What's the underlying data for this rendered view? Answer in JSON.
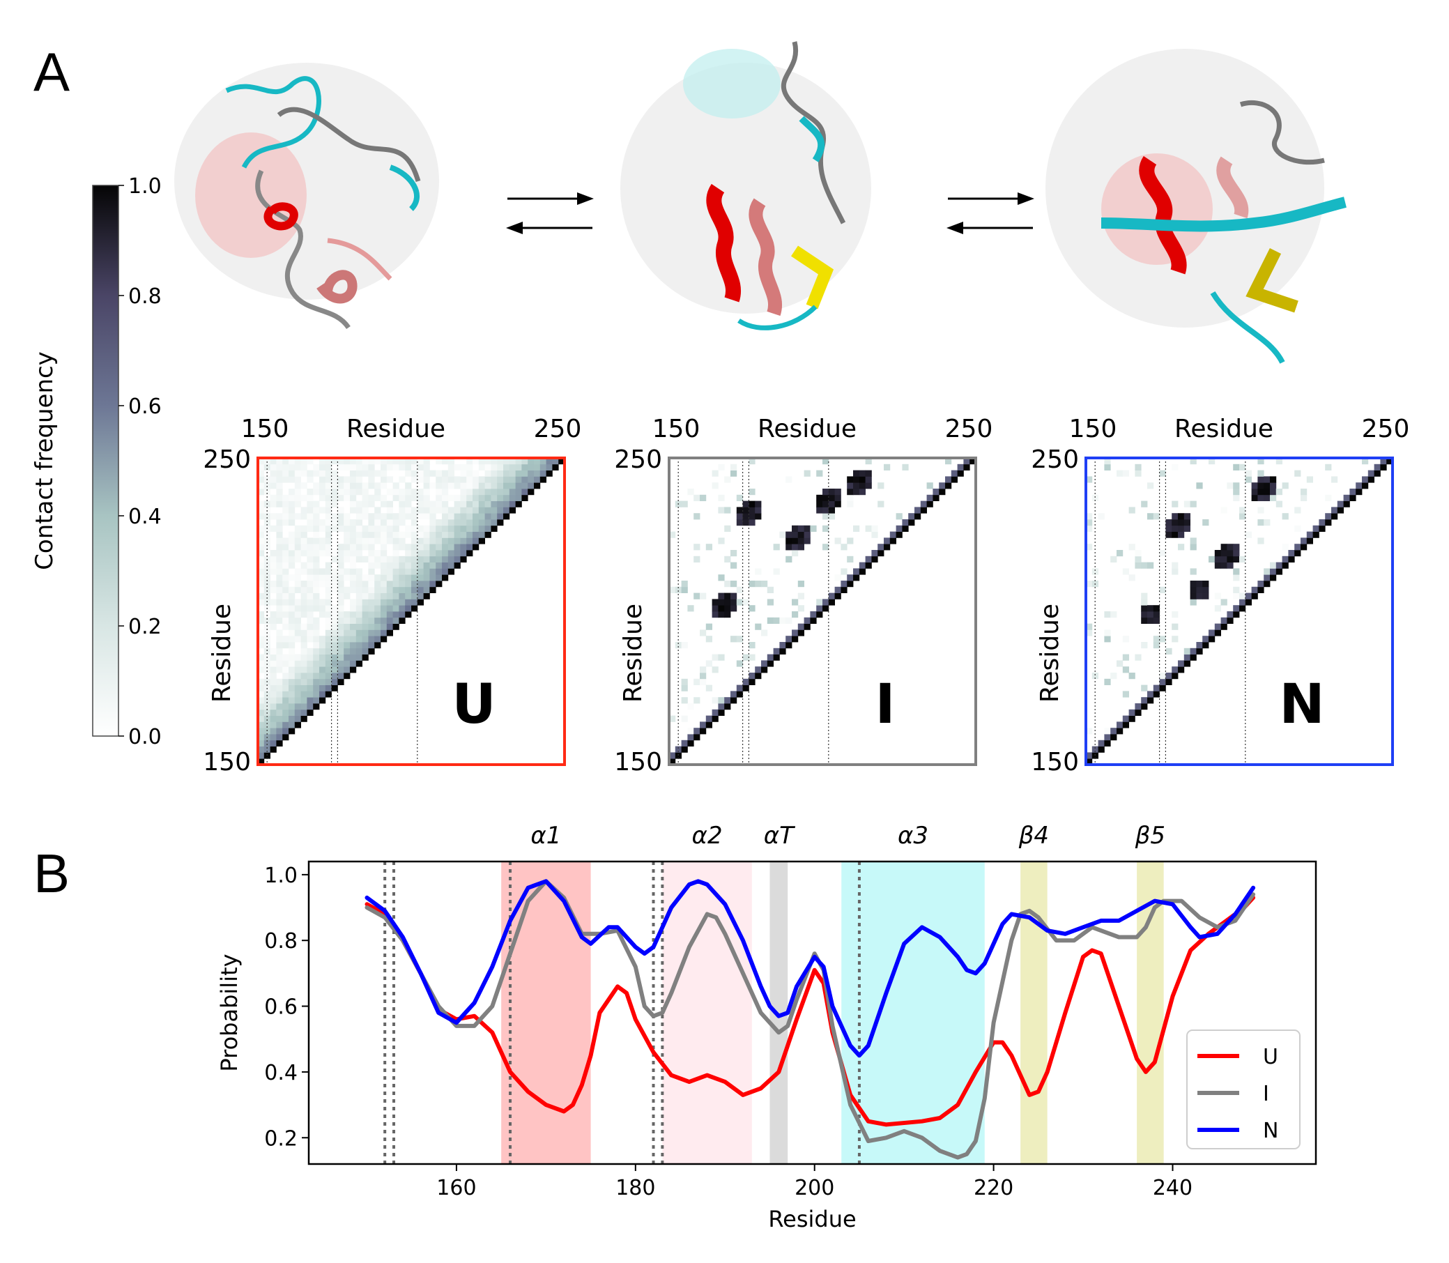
{
  "panels": {
    "a": "A",
    "b": "B"
  },
  "colorbar": {
    "label": "Contact frequency",
    "ticks": [
      "0.0",
      "0.2",
      "0.4",
      "0.6",
      "0.8",
      "1.0"
    ],
    "tick_values": [
      0,
      0.2,
      0.4,
      0.6,
      0.8,
      1.0
    ]
  },
  "contact_maps": [
    {
      "state": "U",
      "frame_color": "#ff2a14",
      "axis_label": "Residue",
      "tick_min": "150",
      "tick_max": "250"
    },
    {
      "state": "I",
      "frame_color": "#808080",
      "axis_label": "Residue",
      "tick_min": "150",
      "tick_max": "250"
    },
    {
      "state": "N",
      "frame_color": "#1f3ff5",
      "axis_label": "Residue",
      "tick_min": "150",
      "tick_max": "250"
    }
  ],
  "chart_data": {
    "type": "line",
    "xlabel": "Residue",
    "ylabel": "Probability",
    "xlim": [
      143.5,
      256
    ],
    "ylim": [
      0.12,
      1.04
    ],
    "xticks": [
      160,
      180,
      200,
      220,
      240
    ],
    "yticks": [
      0.2,
      0.4,
      0.6,
      0.8,
      1.0
    ],
    "xtick_labels": [
      "160",
      "180",
      "200",
      "220",
      "240"
    ],
    "ytick_labels": [
      "0.2",
      "0.4",
      "0.6",
      "0.8",
      "1.0"
    ],
    "legend_position": "lower-right",
    "regions": [
      {
        "label": "α1",
        "x0": 165,
        "x1": 175,
        "color": "#ff8a8a",
        "opacity": 0.5
      },
      {
        "label": "α2",
        "x0": 183,
        "x1": 193,
        "color": "#ffd8e0",
        "opacity": 0.5
      },
      {
        "label": "αT",
        "x0": 195,
        "x1": 197,
        "color": "#bdbdbd",
        "opacity": 0.55
      },
      {
        "label": "α3",
        "x0": 203,
        "x1": 219,
        "color": "#8ff3f3",
        "opacity": 0.5
      },
      {
        "label": "β4",
        "x0": 223,
        "x1": 226,
        "color": "#e0e08a",
        "opacity": 0.55
      },
      {
        "label": "β5",
        "x0": 236,
        "x1": 239,
        "color": "#e0e08a",
        "opacity": 0.55
      }
    ],
    "vlines": [
      152,
      153,
      166,
      182,
      183,
      205
    ],
    "series": [
      {
        "name": "U",
        "color": "#ff0000",
        "points": [
          [
            150,
            0.91
          ],
          [
            152,
            0.88
          ],
          [
            154,
            0.8
          ],
          [
            156,
            0.7
          ],
          [
            158,
            0.59
          ],
          [
            160,
            0.56
          ],
          [
            162,
            0.57
          ],
          [
            164,
            0.52
          ],
          [
            166,
            0.4
          ],
          [
            168,
            0.34
          ],
          [
            170,
            0.3
          ],
          [
            172,
            0.28
          ],
          [
            173,
            0.3
          ],
          [
            174,
            0.36
          ],
          [
            175,
            0.45
          ],
          [
            176,
            0.58
          ],
          [
            178,
            0.66
          ],
          [
            179,
            0.64
          ],
          [
            180,
            0.56
          ],
          [
            182,
            0.46
          ],
          [
            184,
            0.39
          ],
          [
            186,
            0.37
          ],
          [
            188,
            0.39
          ],
          [
            190,
            0.37
          ],
          [
            192,
            0.33
          ],
          [
            194,
            0.35
          ],
          [
            196,
            0.4
          ],
          [
            198,
            0.56
          ],
          [
            200,
            0.71
          ],
          [
            201,
            0.67
          ],
          [
            202,
            0.52
          ],
          [
            204,
            0.33
          ],
          [
            206,
            0.25
          ],
          [
            208,
            0.24
          ],
          [
            212,
            0.25
          ],
          [
            214,
            0.26
          ],
          [
            216,
            0.3
          ],
          [
            218,
            0.4
          ],
          [
            220,
            0.49
          ],
          [
            221,
            0.49
          ],
          [
            222,
            0.45
          ],
          [
            224,
            0.33
          ],
          [
            225,
            0.34
          ],
          [
            226,
            0.4
          ],
          [
            228,
            0.58
          ],
          [
            230,
            0.75
          ],
          [
            231,
            0.77
          ],
          [
            232,
            0.76
          ],
          [
            234,
            0.6
          ],
          [
            236,
            0.44
          ],
          [
            237,
            0.4
          ],
          [
            238,
            0.43
          ],
          [
            240,
            0.63
          ],
          [
            242,
            0.77
          ],
          [
            244,
            0.82
          ],
          [
            246,
            0.86
          ],
          [
            248,
            0.9
          ],
          [
            249,
            0.93
          ]
        ]
      },
      {
        "name": "I",
        "color": "#808080",
        "points": [
          [
            150,
            0.9
          ],
          [
            152,
            0.87
          ],
          [
            154,
            0.8
          ],
          [
            156,
            0.7
          ],
          [
            158,
            0.6
          ],
          [
            160,
            0.54
          ],
          [
            162,
            0.54
          ],
          [
            164,
            0.6
          ],
          [
            166,
            0.76
          ],
          [
            168,
            0.92
          ],
          [
            170,
            0.98
          ],
          [
            172,
            0.93
          ],
          [
            174,
            0.82
          ],
          [
            176,
            0.82
          ],
          [
            178,
            0.83
          ],
          [
            180,
            0.72
          ],
          [
            181,
            0.6
          ],
          [
            182,
            0.57
          ],
          [
            183,
            0.58
          ],
          [
            184,
            0.64
          ],
          [
            186,
            0.78
          ],
          [
            188,
            0.88
          ],
          [
            189,
            0.87
          ],
          [
            190,
            0.82
          ],
          [
            192,
            0.7
          ],
          [
            194,
            0.58
          ],
          [
            196,
            0.52
          ],
          [
            197,
            0.54
          ],
          [
            198,
            0.62
          ],
          [
            200,
            0.76
          ],
          [
            201,
            0.71
          ],
          [
            202,
            0.54
          ],
          [
            204,
            0.3
          ],
          [
            206,
            0.19
          ],
          [
            208,
            0.2
          ],
          [
            210,
            0.22
          ],
          [
            212,
            0.2
          ],
          [
            214,
            0.16
          ],
          [
            216,
            0.14
          ],
          [
            217,
            0.15
          ],
          [
            218,
            0.19
          ],
          [
            219,
            0.32
          ],
          [
            220,
            0.55
          ],
          [
            222,
            0.8
          ],
          [
            223,
            0.88
          ],
          [
            224,
            0.89
          ],
          [
            225,
            0.87
          ],
          [
            227,
            0.8
          ],
          [
            229,
            0.8
          ],
          [
            231,
            0.84
          ],
          [
            232,
            0.83
          ],
          [
            234,
            0.81
          ],
          [
            236,
            0.81
          ],
          [
            237,
            0.84
          ],
          [
            238,
            0.9
          ],
          [
            239,
            0.92
          ],
          [
            241,
            0.92
          ],
          [
            243,
            0.87
          ],
          [
            245,
            0.84
          ],
          [
            247,
            0.86
          ],
          [
            249,
            0.94
          ]
        ]
      },
      {
        "name": "N",
        "color": "#0000ff",
        "points": [
          [
            150,
            0.93
          ],
          [
            152,
            0.89
          ],
          [
            154,
            0.81
          ],
          [
            156,
            0.7
          ],
          [
            158,
            0.58
          ],
          [
            160,
            0.55
          ],
          [
            162,
            0.61
          ],
          [
            164,
            0.72
          ],
          [
            166,
            0.86
          ],
          [
            168,
            0.96
          ],
          [
            170,
            0.98
          ],
          [
            172,
            0.92
          ],
          [
            174,
            0.81
          ],
          [
            175,
            0.79
          ],
          [
            177,
            0.84
          ],
          [
            178,
            0.84
          ],
          [
            180,
            0.78
          ],
          [
            181,
            0.76
          ],
          [
            182,
            0.78
          ],
          [
            184,
            0.9
          ],
          [
            186,
            0.97
          ],
          [
            187,
            0.98
          ],
          [
            188,
            0.97
          ],
          [
            190,
            0.91
          ],
          [
            192,
            0.8
          ],
          [
            194,
            0.66
          ],
          [
            195,
            0.6
          ],
          [
            196,
            0.57
          ],
          [
            197,
            0.58
          ],
          [
            198,
            0.66
          ],
          [
            200,
            0.75
          ],
          [
            201,
            0.72
          ],
          [
            202,
            0.6
          ],
          [
            204,
            0.48
          ],
          [
            205,
            0.45
          ],
          [
            206,
            0.48
          ],
          [
            208,
            0.64
          ],
          [
            210,
            0.79
          ],
          [
            212,
            0.84
          ],
          [
            214,
            0.81
          ],
          [
            216,
            0.75
          ],
          [
            217,
            0.71
          ],
          [
            218,
            0.7
          ],
          [
            219,
            0.73
          ],
          [
            221,
            0.85
          ],
          [
            222,
            0.88
          ],
          [
            224,
            0.87
          ],
          [
            226,
            0.83
          ],
          [
            228,
            0.82
          ],
          [
            230,
            0.84
          ],
          [
            232,
            0.86
          ],
          [
            234,
            0.86
          ],
          [
            236,
            0.89
          ],
          [
            238,
            0.92
          ],
          [
            240,
            0.91
          ],
          [
            242,
            0.84
          ],
          [
            243,
            0.81
          ],
          [
            245,
            0.82
          ],
          [
            247,
            0.88
          ],
          [
            249,
            0.96
          ]
        ]
      }
    ]
  }
}
